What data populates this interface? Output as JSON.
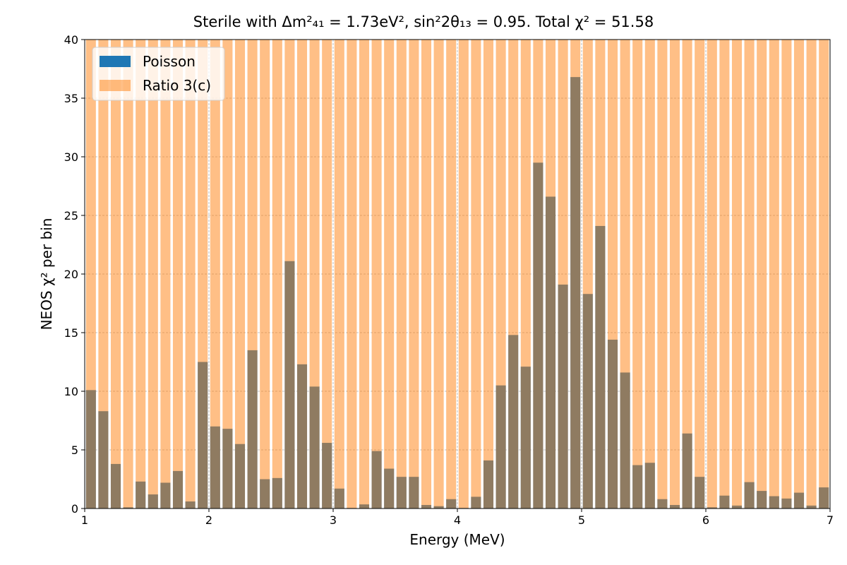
{
  "chart_data": {
    "type": "bar",
    "title": "Sterile with Δm²₄₁ = 1.73eV², sin²2θ₁₃ = 0.95. Total χ² = 51.58",
    "xlabel": "Energy (MeV)",
    "ylabel": "NEOS χ² per bin",
    "xlim": [
      1,
      7
    ],
    "ylim": [
      0,
      40
    ],
    "xticks": [
      "1",
      "2",
      "3",
      "4",
      "5",
      "6",
      "7"
    ],
    "yticks": [
      "0",
      "5",
      "10",
      "15",
      "20",
      "25",
      "30",
      "35",
      "40"
    ],
    "grid": true,
    "legend_position": "top-left",
    "bin_width": 0.1,
    "x": [
      1.05,
      1.15,
      1.25,
      1.35,
      1.45,
      1.55,
      1.65,
      1.75,
      1.85,
      1.95,
      2.05,
      2.15,
      2.25,
      2.35,
      2.45,
      2.55,
      2.65,
      2.75,
      2.85,
      2.95,
      3.05,
      3.15,
      3.25,
      3.35,
      3.45,
      3.55,
      3.65,
      3.75,
      3.85,
      3.95,
      4.05,
      4.15,
      4.25,
      4.35,
      4.45,
      4.55,
      4.65,
      4.75,
      4.85,
      4.95,
      5.05,
      5.15,
      5.25,
      5.35,
      5.45,
      5.55,
      5.65,
      5.75,
      5.85,
      5.95,
      6.05,
      6.15,
      6.25,
      6.35,
      6.45,
      6.55,
      6.65,
      6.75,
      6.85,
      6.95
    ],
    "series": [
      {
        "name": "Poisson",
        "color": "#1f77b4",
        "values": [
          10.1,
          8.3,
          3.8,
          0.1,
          2.3,
          1.2,
          2.2,
          3.2,
          0.6,
          12.5,
          7.0,
          6.8,
          5.5,
          13.5,
          2.5,
          2.6,
          21.1,
          12.3,
          10.4,
          5.6,
          1.7,
          0.05,
          0.35,
          4.9,
          3.4,
          2.7,
          2.7,
          0.3,
          0.2,
          0.8,
          0.05,
          1.0,
          4.1,
          10.5,
          14.8,
          12.1,
          29.5,
          26.6,
          19.1,
          36.8,
          18.3,
          24.1,
          14.4,
          11.6,
          3.7,
          3.9,
          0.8,
          0.3,
          6.4,
          2.7,
          0.1,
          1.1,
          0.25,
          2.25,
          1.5,
          1.05,
          0.85,
          1.35,
          0.25,
          1.8
        ]
      },
      {
        "name": "Ratio 3(c)",
        "color": "#ff7f0e",
        "values": [
          40,
          40,
          40,
          40,
          40,
          40,
          40,
          40,
          40,
          40,
          40,
          40,
          40,
          40,
          40,
          40,
          40,
          40,
          40,
          40,
          40,
          40,
          40,
          40,
          40,
          40,
          40,
          40,
          40,
          40,
          40,
          40,
          40,
          40,
          40,
          40,
          40,
          40,
          40,
          40,
          40,
          40,
          40,
          40,
          40,
          40,
          40,
          40,
          40,
          40,
          40,
          40,
          40,
          40,
          40,
          40,
          40,
          40,
          40,
          40
        ]
      }
    ]
  }
}
